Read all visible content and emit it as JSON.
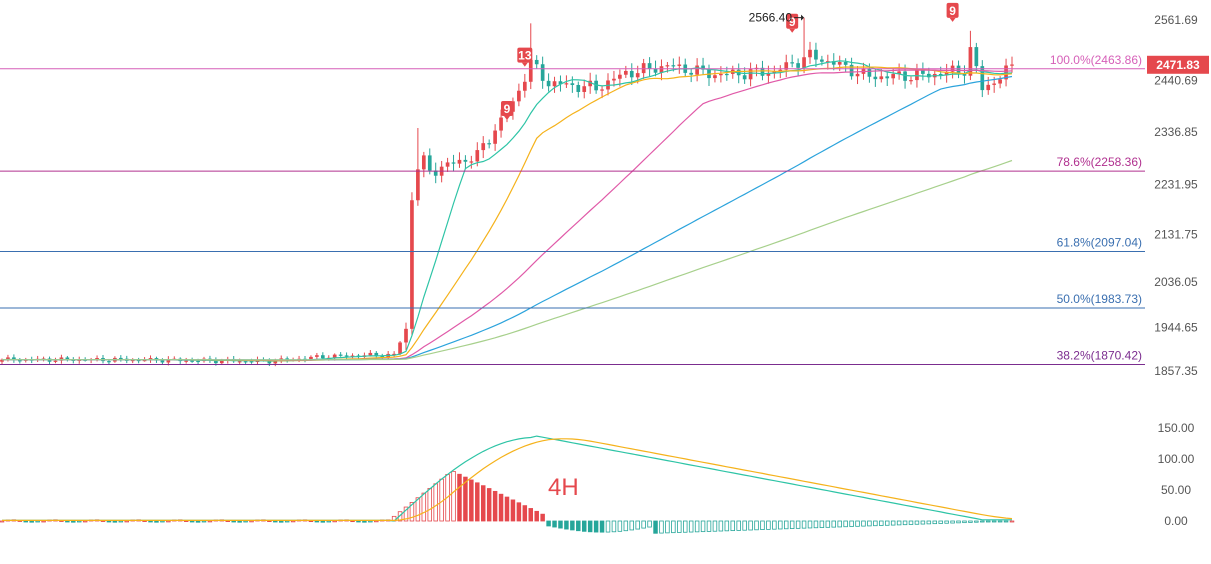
{
  "chart_data": [
    {
      "type": "candlestick",
      "title": "",
      "timeframe_label": "4H",
      "y_axis": {
        "range": [
          1830,
          2600
        ],
        "tick_labels": [
          "2561.69",
          "2440.69",
          "2336.85",
          "2231.95",
          "2131.75",
          "2036.05",
          "1944.65",
          "1857.35"
        ]
      },
      "last_price": {
        "value": 2471.83,
        "label": "2471.83",
        "color": "#e5484d"
      },
      "fibonacci_levels": [
        {
          "ratio": "100.0%",
          "price": 2463.86,
          "label": "100.0%(2463.86)",
          "color": "#d65fb8"
        },
        {
          "ratio": "78.6%",
          "price": 2258.36,
          "label": "78.6%(2258.36)",
          "color": "#b0308f"
        },
        {
          "ratio": "61.8%",
          "price": 2097.04,
          "label": "61.8%(2097.04)",
          "color": "#3a6fb0"
        },
        {
          "ratio": "50.0%",
          "price": 1983.73,
          "label": "50.0%(1983.73)",
          "color": "#3a6fb0"
        },
        {
          "ratio": "38.2%",
          "price": 1870.42,
          "label": "38.2%(1870.42)",
          "color": "#7b2d8f"
        }
      ],
      "annotations": [
        {
          "text": "2566.40",
          "type": "high-marker",
          "price": 2566.4
        }
      ],
      "td_counts": [
        {
          "label": "9",
          "near_price": 2355
        },
        {
          "label": "13",
          "near_price": 2462
        },
        {
          "label": "9",
          "near_price": 2530
        },
        {
          "label": "9",
          "near_price": 2552
        }
      ],
      "moving_averages": [
        {
          "color": "#2ec4a6"
        },
        {
          "color": "#f5b21b"
        },
        {
          "color": "#e05aa8"
        },
        {
          "color": "#2ba3dc"
        },
        {
          "color": "#a7d08c"
        }
      ],
      "colors": {
        "up": "#e5484d",
        "down": "#26a69a",
        "grid": false
      }
    },
    {
      "type": "bar",
      "indicator": "MACD",
      "y_axis": {
        "range": [
          -22,
          160
        ],
        "tick_labels": [
          "150.00",
          "100.00",
          "50.00",
          "0.00"
        ]
      },
      "lines": [
        {
          "role": "fast",
          "color": "#2ec4a6"
        },
        {
          "role": "slow",
          "color": "#f5b21b"
        }
      ]
    }
  ]
}
